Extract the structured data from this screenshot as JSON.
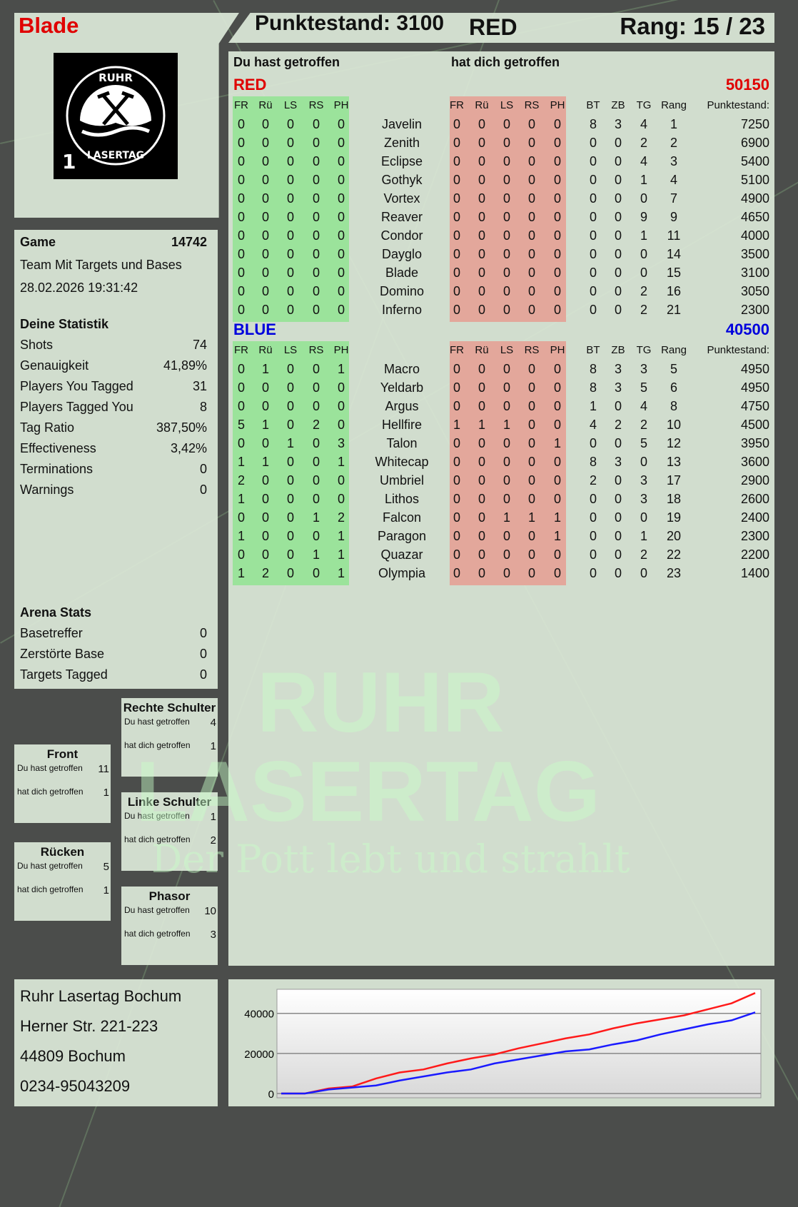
{
  "player": {
    "name": "Blade",
    "score_label": "Punktestand: 3100",
    "team": "RED",
    "rank_label": "Rang: 15 / 23"
  },
  "logo": {
    "text_top": "RUHR",
    "text_bottom": "LASERTAG",
    "number": "1"
  },
  "watermark": {
    "line1": "RUHR",
    "line2": "LASERTAG",
    "tagline": "Der Pott lebt und strahlt"
  },
  "game": {
    "label": "Game",
    "id": "14742",
    "mode": "Team Mit Targets und Bases",
    "datetime": "28.02.2026 19:31:42"
  },
  "stats": {
    "title": "Deine Statistik",
    "items": [
      {
        "label": "Shots",
        "value": "74"
      },
      {
        "label": "Genauigkeit",
        "value": "41,89%"
      },
      {
        "label": "Players You Tagged",
        "value": "31"
      },
      {
        "label": "Players Tagged You",
        "value": "8"
      },
      {
        "label": "Tag Ratio",
        "value": "387,50%"
      },
      {
        "label": "Effectiveness",
        "value": "3,42%"
      },
      {
        "label": "Terminations",
        "value": "0"
      },
      {
        "label": "Warnings",
        "value": "0"
      }
    ]
  },
  "arena": {
    "title": "Arena Stats",
    "items": [
      {
        "label": "Basetreffer",
        "value": "0"
      },
      {
        "label": "Zerstörte Base",
        "value": "0"
      },
      {
        "label": "Targets Tagged",
        "value": "0"
      }
    ]
  },
  "hits": {
    "you_hit": "Du hast getroffen",
    "hit_you": "hat dich getroffen",
    "zones": [
      {
        "title": "Rechte Schulter",
        "you_hit": "4",
        "hit_you": "1"
      },
      {
        "title": "Front",
        "you_hit": "11",
        "hit_you": "1"
      },
      {
        "title": "Linke Schulter",
        "you_hit": "1",
        "hit_you": "2"
      },
      {
        "title": "Rücken",
        "you_hit": "5",
        "hit_you": "1"
      },
      {
        "title": "Phasor",
        "you_hit": "10",
        "hit_you": "3"
      }
    ]
  },
  "address": {
    "lines": [
      "Ruhr Lasertag Bochum",
      "Herner Str. 221-223",
      "44809 Bochum",
      "0234-95043209"
    ]
  },
  "table": {
    "you_hit_header": "Du hast getroffen",
    "hit_you_header": "hat dich getroffen",
    "hit_cols": [
      "FR",
      "Rü",
      "LS",
      "RS",
      "PH"
    ],
    "stat_cols": [
      "BT",
      "ZB",
      "TG",
      "Rang",
      "Punktestand:"
    ],
    "teams": [
      {
        "name": "RED",
        "total": "50150",
        "color": "#e00000",
        "rows": [
          {
            "player": "Javelin",
            "you": [
              0,
              0,
              0,
              0,
              0
            ],
            "them": [
              0,
              0,
              0,
              0,
              0
            ],
            "stats": [
              8,
              3,
              4,
              1,
              7250
            ]
          },
          {
            "player": "Zenith",
            "you": [
              0,
              0,
              0,
              0,
              0
            ],
            "them": [
              0,
              0,
              0,
              0,
              0
            ],
            "stats": [
              0,
              0,
              2,
              2,
              6900
            ]
          },
          {
            "player": "Eclipse",
            "you": [
              0,
              0,
              0,
              0,
              0
            ],
            "them": [
              0,
              0,
              0,
              0,
              0
            ],
            "stats": [
              0,
              0,
              4,
              3,
              5400
            ]
          },
          {
            "player": "Gothyk",
            "you": [
              0,
              0,
              0,
              0,
              0
            ],
            "them": [
              0,
              0,
              0,
              0,
              0
            ],
            "stats": [
              0,
              0,
              1,
              4,
              5100
            ]
          },
          {
            "player": "Vortex",
            "you": [
              0,
              0,
              0,
              0,
              0
            ],
            "them": [
              0,
              0,
              0,
              0,
              0
            ],
            "stats": [
              0,
              0,
              0,
              7,
              4900
            ]
          },
          {
            "player": "Reaver",
            "you": [
              0,
              0,
              0,
              0,
              0
            ],
            "them": [
              0,
              0,
              0,
              0,
              0
            ],
            "stats": [
              0,
              0,
              9,
              9,
              4650
            ]
          },
          {
            "player": "Condor",
            "you": [
              0,
              0,
              0,
              0,
              0
            ],
            "them": [
              0,
              0,
              0,
              0,
              0
            ],
            "stats": [
              0,
              0,
              1,
              11,
              4000
            ]
          },
          {
            "player": "Dayglo",
            "you": [
              0,
              0,
              0,
              0,
              0
            ],
            "them": [
              0,
              0,
              0,
              0,
              0
            ],
            "stats": [
              0,
              0,
              0,
              14,
              3500
            ]
          },
          {
            "player": "Blade",
            "you": [
              0,
              0,
              0,
              0,
              0
            ],
            "them": [
              0,
              0,
              0,
              0,
              0
            ],
            "stats": [
              0,
              0,
              0,
              15,
              3100
            ]
          },
          {
            "player": "Domino",
            "you": [
              0,
              0,
              0,
              0,
              0
            ],
            "them": [
              0,
              0,
              0,
              0,
              0
            ],
            "stats": [
              0,
              0,
              2,
              16,
              3050
            ]
          },
          {
            "player": "Inferno",
            "you": [
              0,
              0,
              0,
              0,
              0
            ],
            "them": [
              0,
              0,
              0,
              0,
              0
            ],
            "stats": [
              0,
              0,
              2,
              21,
              2300
            ]
          }
        ]
      },
      {
        "name": "BLUE",
        "total": "40500",
        "color": "#0000dd",
        "rows": [
          {
            "player": "Macro",
            "you": [
              0,
              1,
              0,
              0,
              1
            ],
            "them": [
              0,
              0,
              0,
              0,
              0
            ],
            "stats": [
              8,
              3,
              3,
              5,
              4950
            ]
          },
          {
            "player": "Yeldarb",
            "you": [
              0,
              0,
              0,
              0,
              0
            ],
            "them": [
              0,
              0,
              0,
              0,
              0
            ],
            "stats": [
              8,
              3,
              5,
              6,
              4950
            ]
          },
          {
            "player": "Argus",
            "you": [
              0,
              0,
              0,
              0,
              0
            ],
            "them": [
              0,
              0,
              0,
              0,
              0
            ],
            "stats": [
              1,
              0,
              4,
              8,
              4750
            ]
          },
          {
            "player": "Hellfire",
            "you": [
              5,
              1,
              0,
              2,
              0
            ],
            "them": [
              1,
              1,
              1,
              0,
              0
            ],
            "stats": [
              4,
              2,
              2,
              10,
              4500
            ]
          },
          {
            "player": "Talon",
            "you": [
              0,
              0,
              1,
              0,
              3
            ],
            "them": [
              0,
              0,
              0,
              0,
              1
            ],
            "stats": [
              0,
              0,
              5,
              12,
              3950
            ]
          },
          {
            "player": "Whitecap",
            "you": [
              1,
              1,
              0,
              0,
              1
            ],
            "them": [
              0,
              0,
              0,
              0,
              0
            ],
            "stats": [
              8,
              3,
              0,
              13,
              3600
            ]
          },
          {
            "player": "Umbriel",
            "you": [
              2,
              0,
              0,
              0,
              0
            ],
            "them": [
              0,
              0,
              0,
              0,
              0
            ],
            "stats": [
              2,
              0,
              3,
              17,
              2900
            ]
          },
          {
            "player": "Lithos",
            "you": [
              1,
              0,
              0,
              0,
              0
            ],
            "them": [
              0,
              0,
              0,
              0,
              0
            ],
            "stats": [
              0,
              0,
              3,
              18,
              2600
            ]
          },
          {
            "player": "Falcon",
            "you": [
              0,
              0,
              0,
              1,
              2
            ],
            "them": [
              0,
              0,
              1,
              1,
              1
            ],
            "stats": [
              0,
              0,
              0,
              19,
              2400
            ]
          },
          {
            "player": "Paragon",
            "you": [
              1,
              0,
              0,
              0,
              1
            ],
            "them": [
              0,
              0,
              0,
              0,
              1
            ],
            "stats": [
              0,
              0,
              1,
              20,
              2300
            ]
          },
          {
            "player": "Quazar",
            "you": [
              0,
              0,
              0,
              1,
              1
            ],
            "them": [
              0,
              0,
              0,
              0,
              0
            ],
            "stats": [
              0,
              0,
              2,
              22,
              2200
            ]
          },
          {
            "player": "Olympia",
            "you": [
              1,
              2,
              0,
              0,
              1
            ],
            "them": [
              0,
              0,
              0,
              0,
              0
            ],
            "stats": [
              0,
              0,
              0,
              23,
              1400
            ]
          }
        ]
      }
    ]
  },
  "colors": {
    "you_band": "#9be39b",
    "them_band": "#e3a79b",
    "red": "#ff1a1a",
    "blue": "#1a1aff"
  },
  "chart_data": {
    "type": "line",
    "ylim": [
      0,
      52000
    ],
    "yticks": [
      "0",
      "20000",
      "40000"
    ],
    "grid": true,
    "x": [
      0,
      1,
      2,
      3,
      4,
      5,
      6,
      7,
      8,
      9,
      10,
      11,
      12,
      13,
      14,
      15,
      16,
      17,
      18,
      19,
      20
    ],
    "series": [
      {
        "color": "#ff1a1a",
        "values": [
          0,
          0,
          2500,
          3500,
          7500,
          10500,
          12000,
          15000,
          17500,
          19500,
          22500,
          25000,
          27500,
          29500,
          32500,
          35000,
          37000,
          39000,
          42000,
          45000,
          50150
        ]
      },
      {
        "color": "#1a1aff",
        "values": [
          0,
          0,
          2000,
          3000,
          4000,
          6500,
          8500,
          10500,
          12000,
          15000,
          17000,
          19000,
          21000,
          22000,
          24500,
          26500,
          29500,
          32000,
          34500,
          36500,
          40500
        ]
      }
    ]
  }
}
